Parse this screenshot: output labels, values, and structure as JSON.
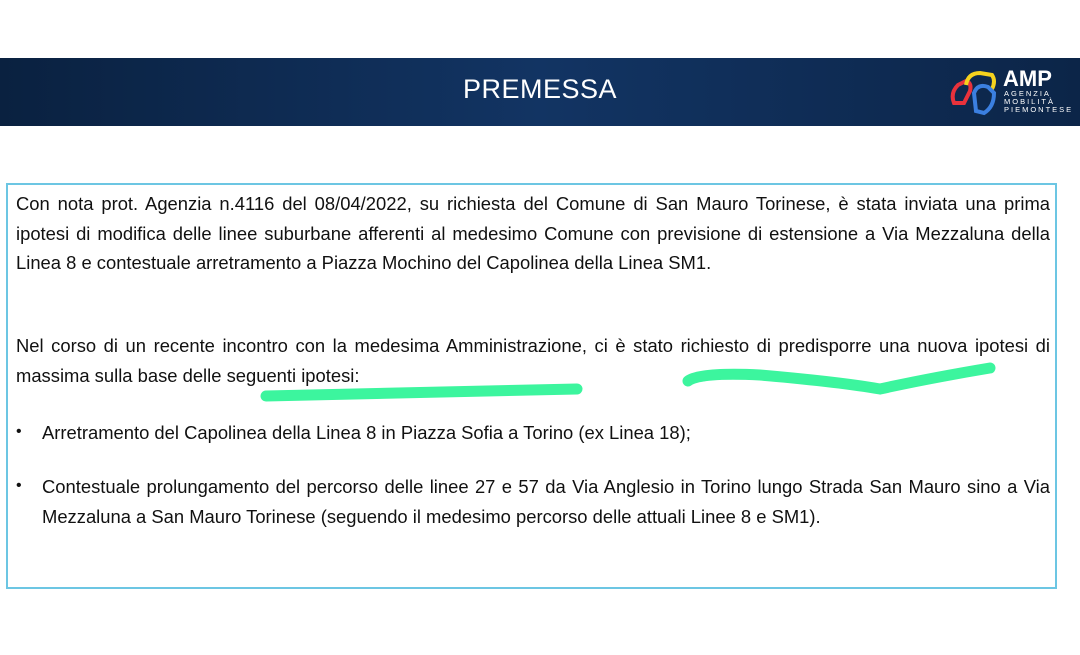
{
  "header": {
    "title": "PREMESSA",
    "logo": {
      "name": "AMP",
      "subtitle_lines": [
        "AGENZIA",
        "MOBILITÀ",
        "PIEMONTESE"
      ]
    },
    "background_color": "#123463"
  },
  "content": {
    "paragraphs": [
      "Con nota prot. Agenzia n.4116 del 08/04/2022, su richiesta del Comune di San Mauro Torinese, è stata inviata una prima ipotesi di modifica delle linee suburbane afferenti al medesimo Comune con previsione di estensione a Via Mezzaluna della Linea 8 e contestuale arretramento a Piazza Mochino del Capolinea della Linea SM1.",
      "Nel corso di un recente incontro con la medesima Amministrazione, ci è stato richiesto di predisporre una nuova ipotesi di massima sulla base delle seguenti ipotesi:"
    ],
    "bullets": [
      "Arretramento del Capolinea della Linea 8 in Piazza Sofia a Torino (ex Linea 18);",
      "Contestuale prolungamento del percorso delle linee 27 e 57 da Via Anglesio in Torino lungo Strada San Mauro sino a Via Mezzaluna a San Mauro Torinese (seguendo il medesimo percorso delle attuali Linee 8 e SM1)."
    ],
    "bullet_symbol": "•",
    "border_color": "#6cc6e3",
    "highlight_color": "#3cf59e"
  }
}
